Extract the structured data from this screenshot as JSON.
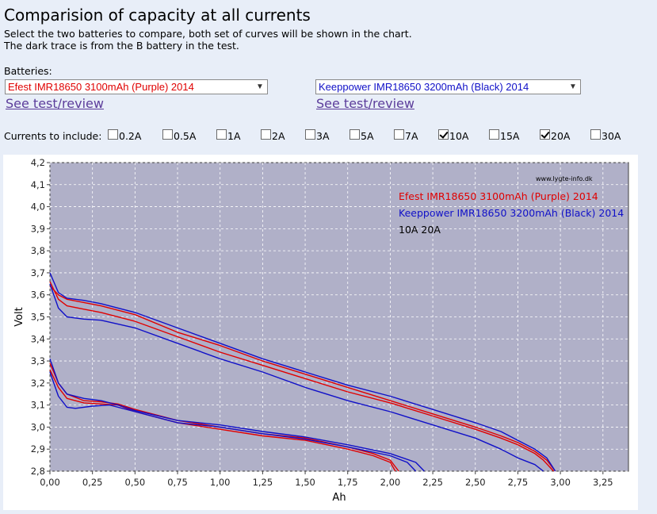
{
  "page": {
    "title": "Comparision of capacity at all currents",
    "intro_line1": "Select the two batteries to compare, both set of curves will be shown in the chart.",
    "intro_line2": "The dark trace is from the B battery in the test.",
    "batteries_label": "Batteries:"
  },
  "battery_a": {
    "selected": "Efest IMR18650 3100mAh (Purple) 2014",
    "link_text": "See test/review",
    "color": "#e00000"
  },
  "battery_b": {
    "selected": "Keeppower IMR18650 3200mAh (Black) 2014",
    "link_text": "See test/review",
    "color": "#1010c8"
  },
  "currents": {
    "label": "Currents to include:",
    "options": [
      {
        "label": "0.2A",
        "checked": false
      },
      {
        "label": "0.5A",
        "checked": false
      },
      {
        "label": "1A",
        "checked": false
      },
      {
        "label": "2A",
        "checked": false
      },
      {
        "label": "3A",
        "checked": false
      },
      {
        "label": "5A",
        "checked": false
      },
      {
        "label": "7A",
        "checked": false
      },
      {
        "label": "10A",
        "checked": true
      },
      {
        "label": "15A",
        "checked": false
      },
      {
        "label": "20A",
        "checked": true
      },
      {
        "label": "30A",
        "checked": false
      }
    ]
  },
  "chart_data": {
    "type": "line",
    "title": "",
    "xlabel": "Ah",
    "ylabel": "Volt",
    "watermark": "www.lygte-info.dk",
    "xlim": [
      0,
      3.4
    ],
    "ylim": [
      2.8,
      4.2
    ],
    "x_ticks": [
      "0,00",
      "0,25",
      "0,50",
      "0,75",
      "1,00",
      "1,25",
      "1,50",
      "1,75",
      "2,00",
      "2,25",
      "2,50",
      "2,75",
      "3,00",
      "3,25"
    ],
    "y_ticks": [
      "2,8",
      "2,9",
      "3,0",
      "3,1",
      "3,2",
      "3,3",
      "3,4",
      "3,5",
      "3,6",
      "3,7",
      "3,8",
      "3,9",
      "4,0",
      "4,1",
      "4,2"
    ],
    "grid": true,
    "plot_background": "#b0b0c8",
    "legend": {
      "placement": "top-right",
      "entries": [
        {
          "text": "Efest IMR18650 3100mAh (Purple) 2014",
          "color": "#e00000"
        },
        {
          "text": "Keeppower IMR18650 3200mAh (Black) 2014",
          "color": "#1010c8"
        },
        {
          "text": "10A 20A",
          "color": "#000000"
        }
      ]
    },
    "series": [
      {
        "battery": "A",
        "current": "10A",
        "color": "#e00000",
        "points": [
          [
            0,
            3.66
          ],
          [
            0.05,
            3.58
          ],
          [
            0.1,
            3.55
          ],
          [
            0.2,
            3.535
          ],
          [
            0.3,
            3.52
          ],
          [
            0.5,
            3.48
          ],
          [
            0.75,
            3.41
          ],
          [
            1.0,
            3.34
          ],
          [
            1.25,
            3.28
          ],
          [
            1.5,
            3.22
          ],
          [
            1.75,
            3.16
          ],
          [
            2.0,
            3.11
          ],
          [
            2.25,
            3.05
          ],
          [
            2.5,
            2.99
          ],
          [
            2.65,
            2.95
          ],
          [
            2.75,
            2.92
          ],
          [
            2.85,
            2.88
          ],
          [
            2.9,
            2.85
          ],
          [
            2.96,
            2.8
          ]
        ]
      },
      {
        "battery": "A",
        "current": "10A",
        "color": "#e00000",
        "points": [
          [
            0,
            3.64
          ],
          [
            0.05,
            3.6
          ],
          [
            0.1,
            3.58
          ],
          [
            0.2,
            3.565
          ],
          [
            0.3,
            3.55
          ],
          [
            0.5,
            3.51
          ],
          [
            0.75,
            3.43
          ],
          [
            1.0,
            3.37
          ],
          [
            1.25,
            3.3
          ],
          [
            1.5,
            3.24
          ],
          [
            1.75,
            3.18
          ],
          [
            2.0,
            3.12
          ],
          [
            2.25,
            3.06
          ],
          [
            2.5,
            3.0
          ],
          [
            2.65,
            2.96
          ],
          [
            2.75,
            2.93
          ],
          [
            2.85,
            2.89
          ],
          [
            2.92,
            2.85
          ],
          [
            2.97,
            2.8
          ]
        ]
      },
      {
        "battery": "B",
        "current": "10A",
        "color": "#1010c8",
        "points": [
          [
            0,
            3.7
          ],
          [
            0.05,
            3.61
          ],
          [
            0.1,
            3.585
          ],
          [
            0.2,
            3.575
          ],
          [
            0.3,
            3.56
          ],
          [
            0.5,
            3.52
          ],
          [
            0.75,
            3.45
          ],
          [
            1.0,
            3.38
          ],
          [
            1.25,
            3.31
          ],
          [
            1.5,
            3.25
          ],
          [
            1.75,
            3.19
          ],
          [
            2.0,
            3.14
          ],
          [
            2.25,
            3.08
          ],
          [
            2.5,
            3.02
          ],
          [
            2.65,
            2.98
          ],
          [
            2.75,
            2.94
          ],
          [
            2.85,
            2.9
          ],
          [
            2.92,
            2.86
          ],
          [
            2.97,
            2.8
          ]
        ]
      },
      {
        "battery": "B",
        "current": "10A",
        "color": "#1010c8",
        "points": [
          [
            0,
            3.65
          ],
          [
            0.05,
            3.54
          ],
          [
            0.1,
            3.5
          ],
          [
            0.2,
            3.49
          ],
          [
            0.3,
            3.485
          ],
          [
            0.5,
            3.45
          ],
          [
            0.75,
            3.38
          ],
          [
            1.0,
            3.31
          ],
          [
            1.25,
            3.25
          ],
          [
            1.5,
            3.18
          ],
          [
            1.75,
            3.12
          ],
          [
            2.0,
            3.07
          ],
          [
            2.25,
            3.01
          ],
          [
            2.5,
            2.95
          ],
          [
            2.65,
            2.9
          ],
          [
            2.75,
            2.86
          ],
          [
            2.85,
            2.83
          ],
          [
            2.9,
            2.8
          ]
        ]
      },
      {
        "battery": "A",
        "current": "20A",
        "color": "#e00000",
        "points": [
          [
            0,
            3.29
          ],
          [
            0.05,
            3.2
          ],
          [
            0.1,
            3.15
          ],
          [
            0.2,
            3.12
          ],
          [
            0.3,
            3.115
          ],
          [
            0.4,
            3.105
          ],
          [
            0.5,
            3.08
          ],
          [
            0.75,
            3.03
          ],
          [
            1.0,
            3.0
          ],
          [
            1.25,
            2.97
          ],
          [
            1.5,
            2.95
          ],
          [
            1.75,
            2.91
          ],
          [
            1.9,
            2.88
          ],
          [
            2.0,
            2.85
          ],
          [
            2.05,
            2.8
          ]
        ]
      },
      {
        "battery": "A",
        "current": "20A",
        "color": "#e00000",
        "points": [
          [
            0,
            3.26
          ],
          [
            0.05,
            3.18
          ],
          [
            0.1,
            3.13
          ],
          [
            0.2,
            3.11
          ],
          [
            0.3,
            3.105
          ],
          [
            0.4,
            3.1
          ],
          [
            0.5,
            3.07
          ],
          [
            0.75,
            3.02
          ],
          [
            1.0,
            2.99
          ],
          [
            1.25,
            2.96
          ],
          [
            1.5,
            2.94
          ],
          [
            1.75,
            2.9
          ],
          [
            1.9,
            2.87
          ],
          [
            2.0,
            2.84
          ],
          [
            2.03,
            2.8
          ]
        ]
      },
      {
        "battery": "B",
        "current": "20A",
        "color": "#1010c8",
        "points": [
          [
            0,
            3.31
          ],
          [
            0.05,
            3.2
          ],
          [
            0.1,
            3.15
          ],
          [
            0.2,
            3.13
          ],
          [
            0.3,
            3.12
          ],
          [
            0.4,
            3.1
          ],
          [
            0.5,
            3.075
          ],
          [
            0.75,
            3.03
          ],
          [
            1.0,
            3.01
          ],
          [
            1.25,
            2.98
          ],
          [
            1.5,
            2.955
          ],
          [
            1.75,
            2.92
          ],
          [
            2.0,
            2.88
          ],
          [
            2.15,
            2.84
          ],
          [
            2.2,
            2.8
          ]
        ]
      },
      {
        "battery": "B",
        "current": "20A",
        "color": "#1010c8",
        "points": [
          [
            0,
            3.25
          ],
          [
            0.05,
            3.14
          ],
          [
            0.1,
            3.09
          ],
          [
            0.15,
            3.085
          ],
          [
            0.25,
            3.095
          ],
          [
            0.35,
            3.1
          ],
          [
            0.5,
            3.07
          ],
          [
            0.75,
            3.02
          ],
          [
            1.0,
            3.0
          ],
          [
            1.25,
            2.97
          ],
          [
            1.5,
            2.945
          ],
          [
            1.75,
            2.91
          ],
          [
            2.0,
            2.87
          ],
          [
            2.1,
            2.84
          ],
          [
            2.15,
            2.8
          ]
        ]
      }
    ]
  }
}
